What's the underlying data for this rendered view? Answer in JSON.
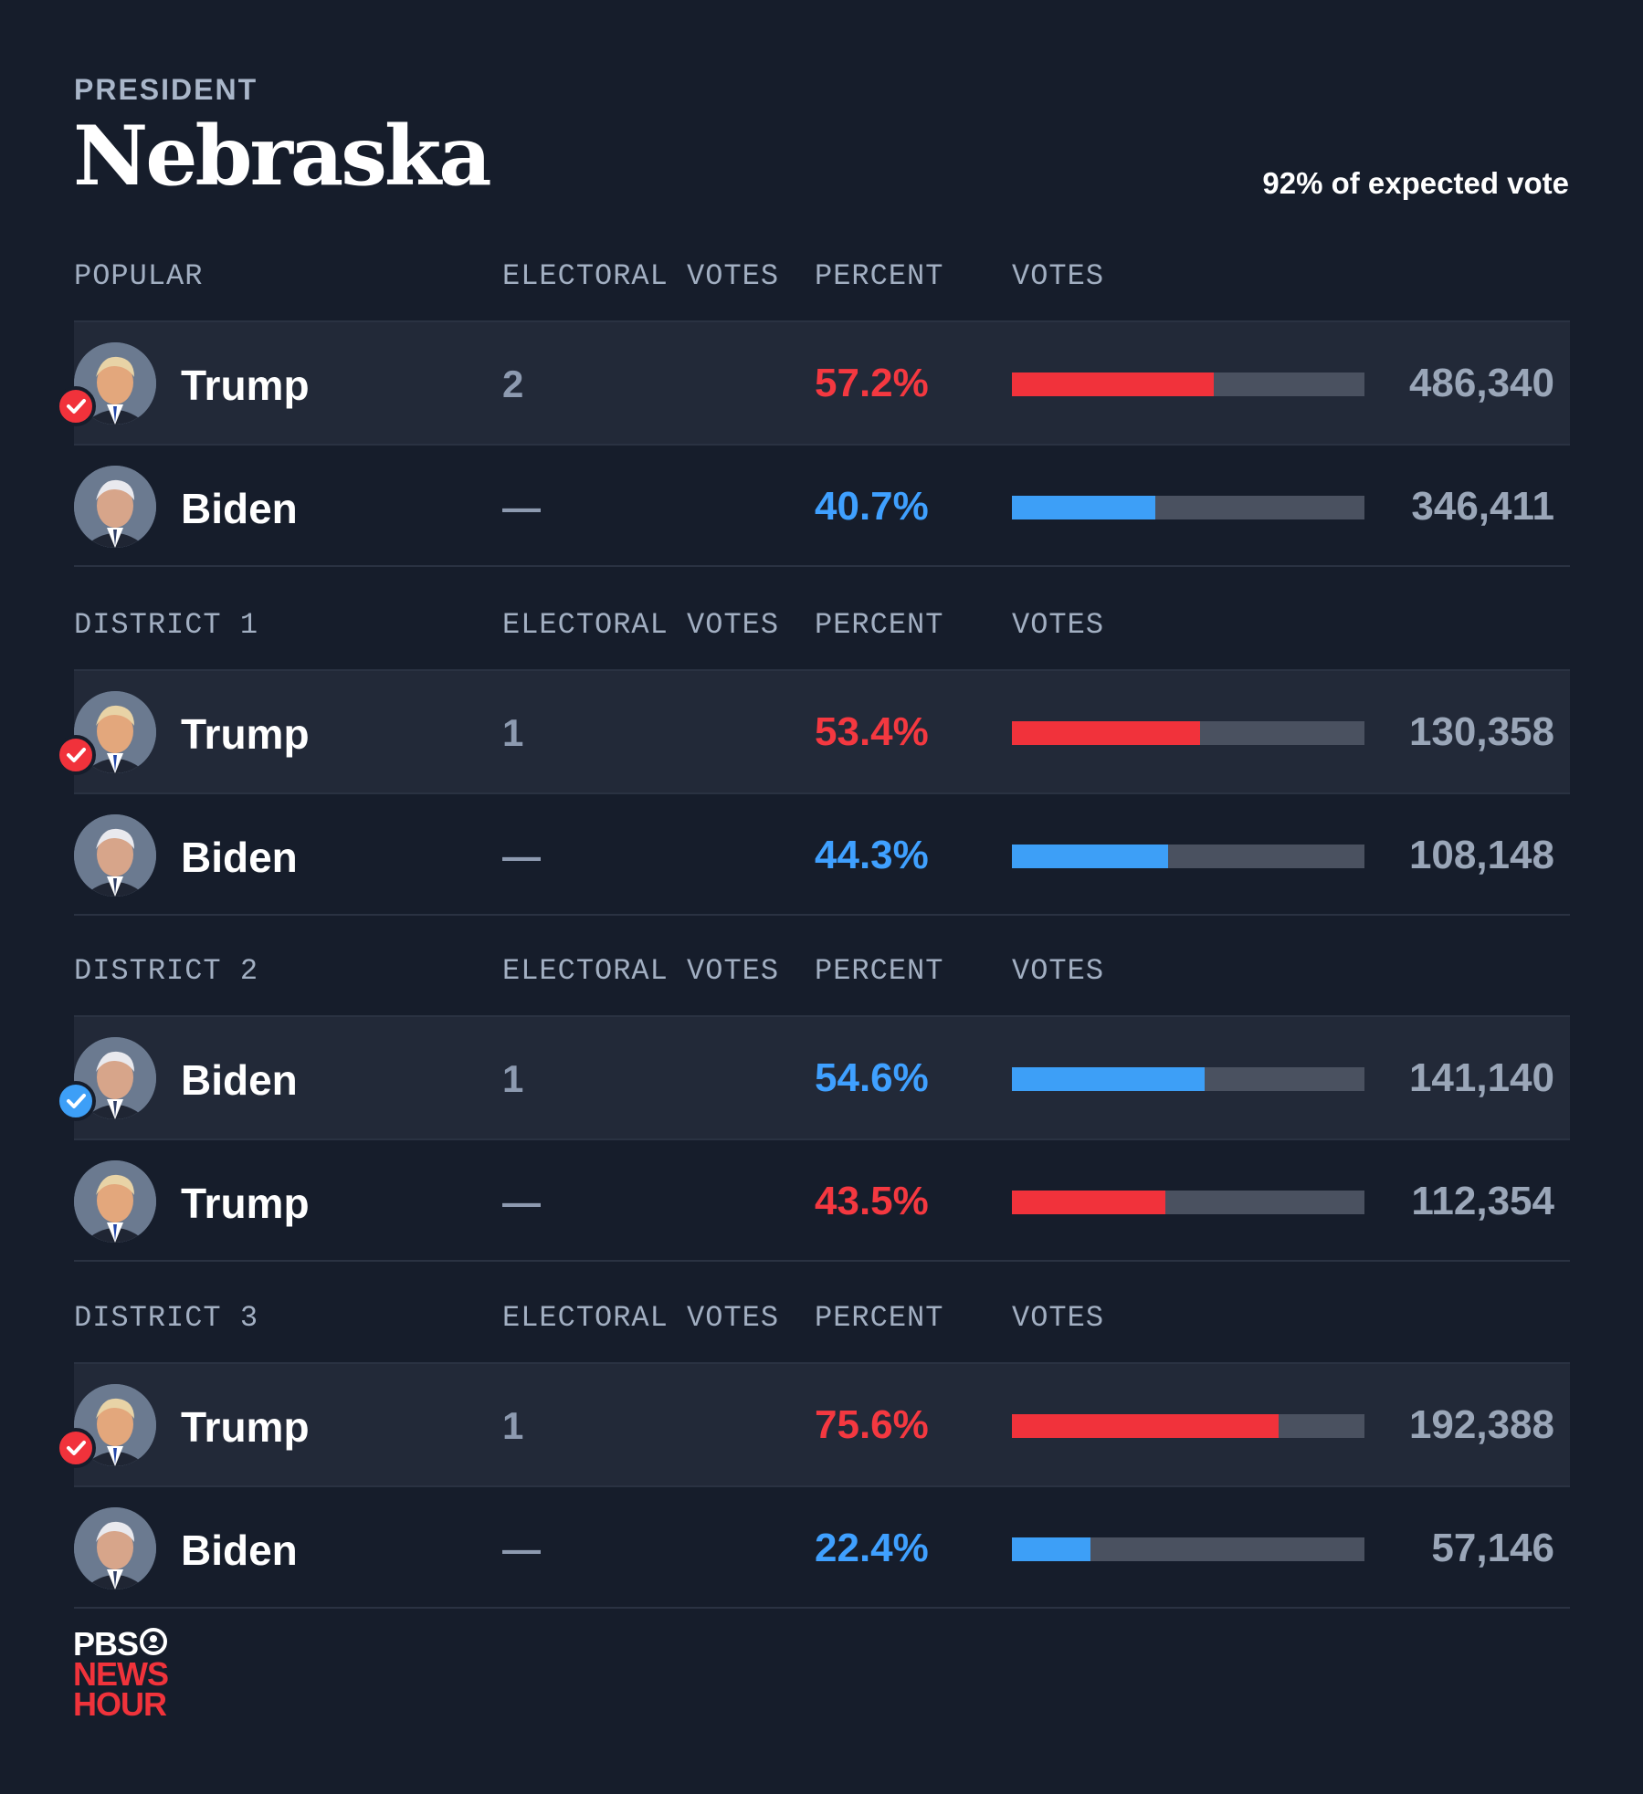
{
  "header": {
    "eyebrow": "PRESIDENT",
    "title": "Nebraska",
    "expected": "92% of expected vote"
  },
  "columns": {
    "electoral": "ELECTORAL VOTES",
    "percent": "PERCENT",
    "votes": "VOTES"
  },
  "colors": {
    "rep": "#f1323b",
    "dem": "#3d9ff7",
    "background": "#161d2b"
  },
  "sections": [
    {
      "label": "POPULAR",
      "rows": [
        {
          "candidate": "Trump",
          "party": "rep",
          "winner": true,
          "electoral": "2",
          "percent": "57.2%",
          "share": 0.572,
          "votes": "486,340"
        },
        {
          "candidate": "Biden",
          "party": "dem",
          "winner": false,
          "electoral": "—",
          "percent": "40.7%",
          "share": 0.407,
          "votes": "346,411"
        }
      ]
    },
    {
      "label": "DISTRICT 1",
      "rows": [
        {
          "candidate": "Trump",
          "party": "rep",
          "winner": true,
          "electoral": "1",
          "percent": "53.4%",
          "share": 0.534,
          "votes": "130,358"
        },
        {
          "candidate": "Biden",
          "party": "dem",
          "winner": false,
          "electoral": "—",
          "percent": "44.3%",
          "share": 0.443,
          "votes": "108,148"
        }
      ]
    },
    {
      "label": "DISTRICT 2",
      "rows": [
        {
          "candidate": "Biden",
          "party": "dem",
          "winner": true,
          "electoral": "1",
          "percent": "54.6%",
          "share": 0.546,
          "votes": "141,140"
        },
        {
          "candidate": "Trump",
          "party": "rep",
          "winner": false,
          "electoral": "—",
          "percent": "43.5%",
          "share": 0.435,
          "votes": "112,354"
        }
      ]
    },
    {
      "label": "DISTRICT 3",
      "rows": [
        {
          "candidate": "Trump",
          "party": "rep",
          "winner": true,
          "electoral": "1",
          "percent": "75.6%",
          "share": 0.756,
          "votes": "192,388"
        },
        {
          "candidate": "Biden",
          "party": "dem",
          "winner": false,
          "electoral": "—",
          "percent": "22.4%",
          "share": 0.224,
          "votes": "57,146"
        }
      ]
    }
  ],
  "logo": {
    "line1": "PBS",
    "line2": "NEWS",
    "line3": "HOUR"
  }
}
